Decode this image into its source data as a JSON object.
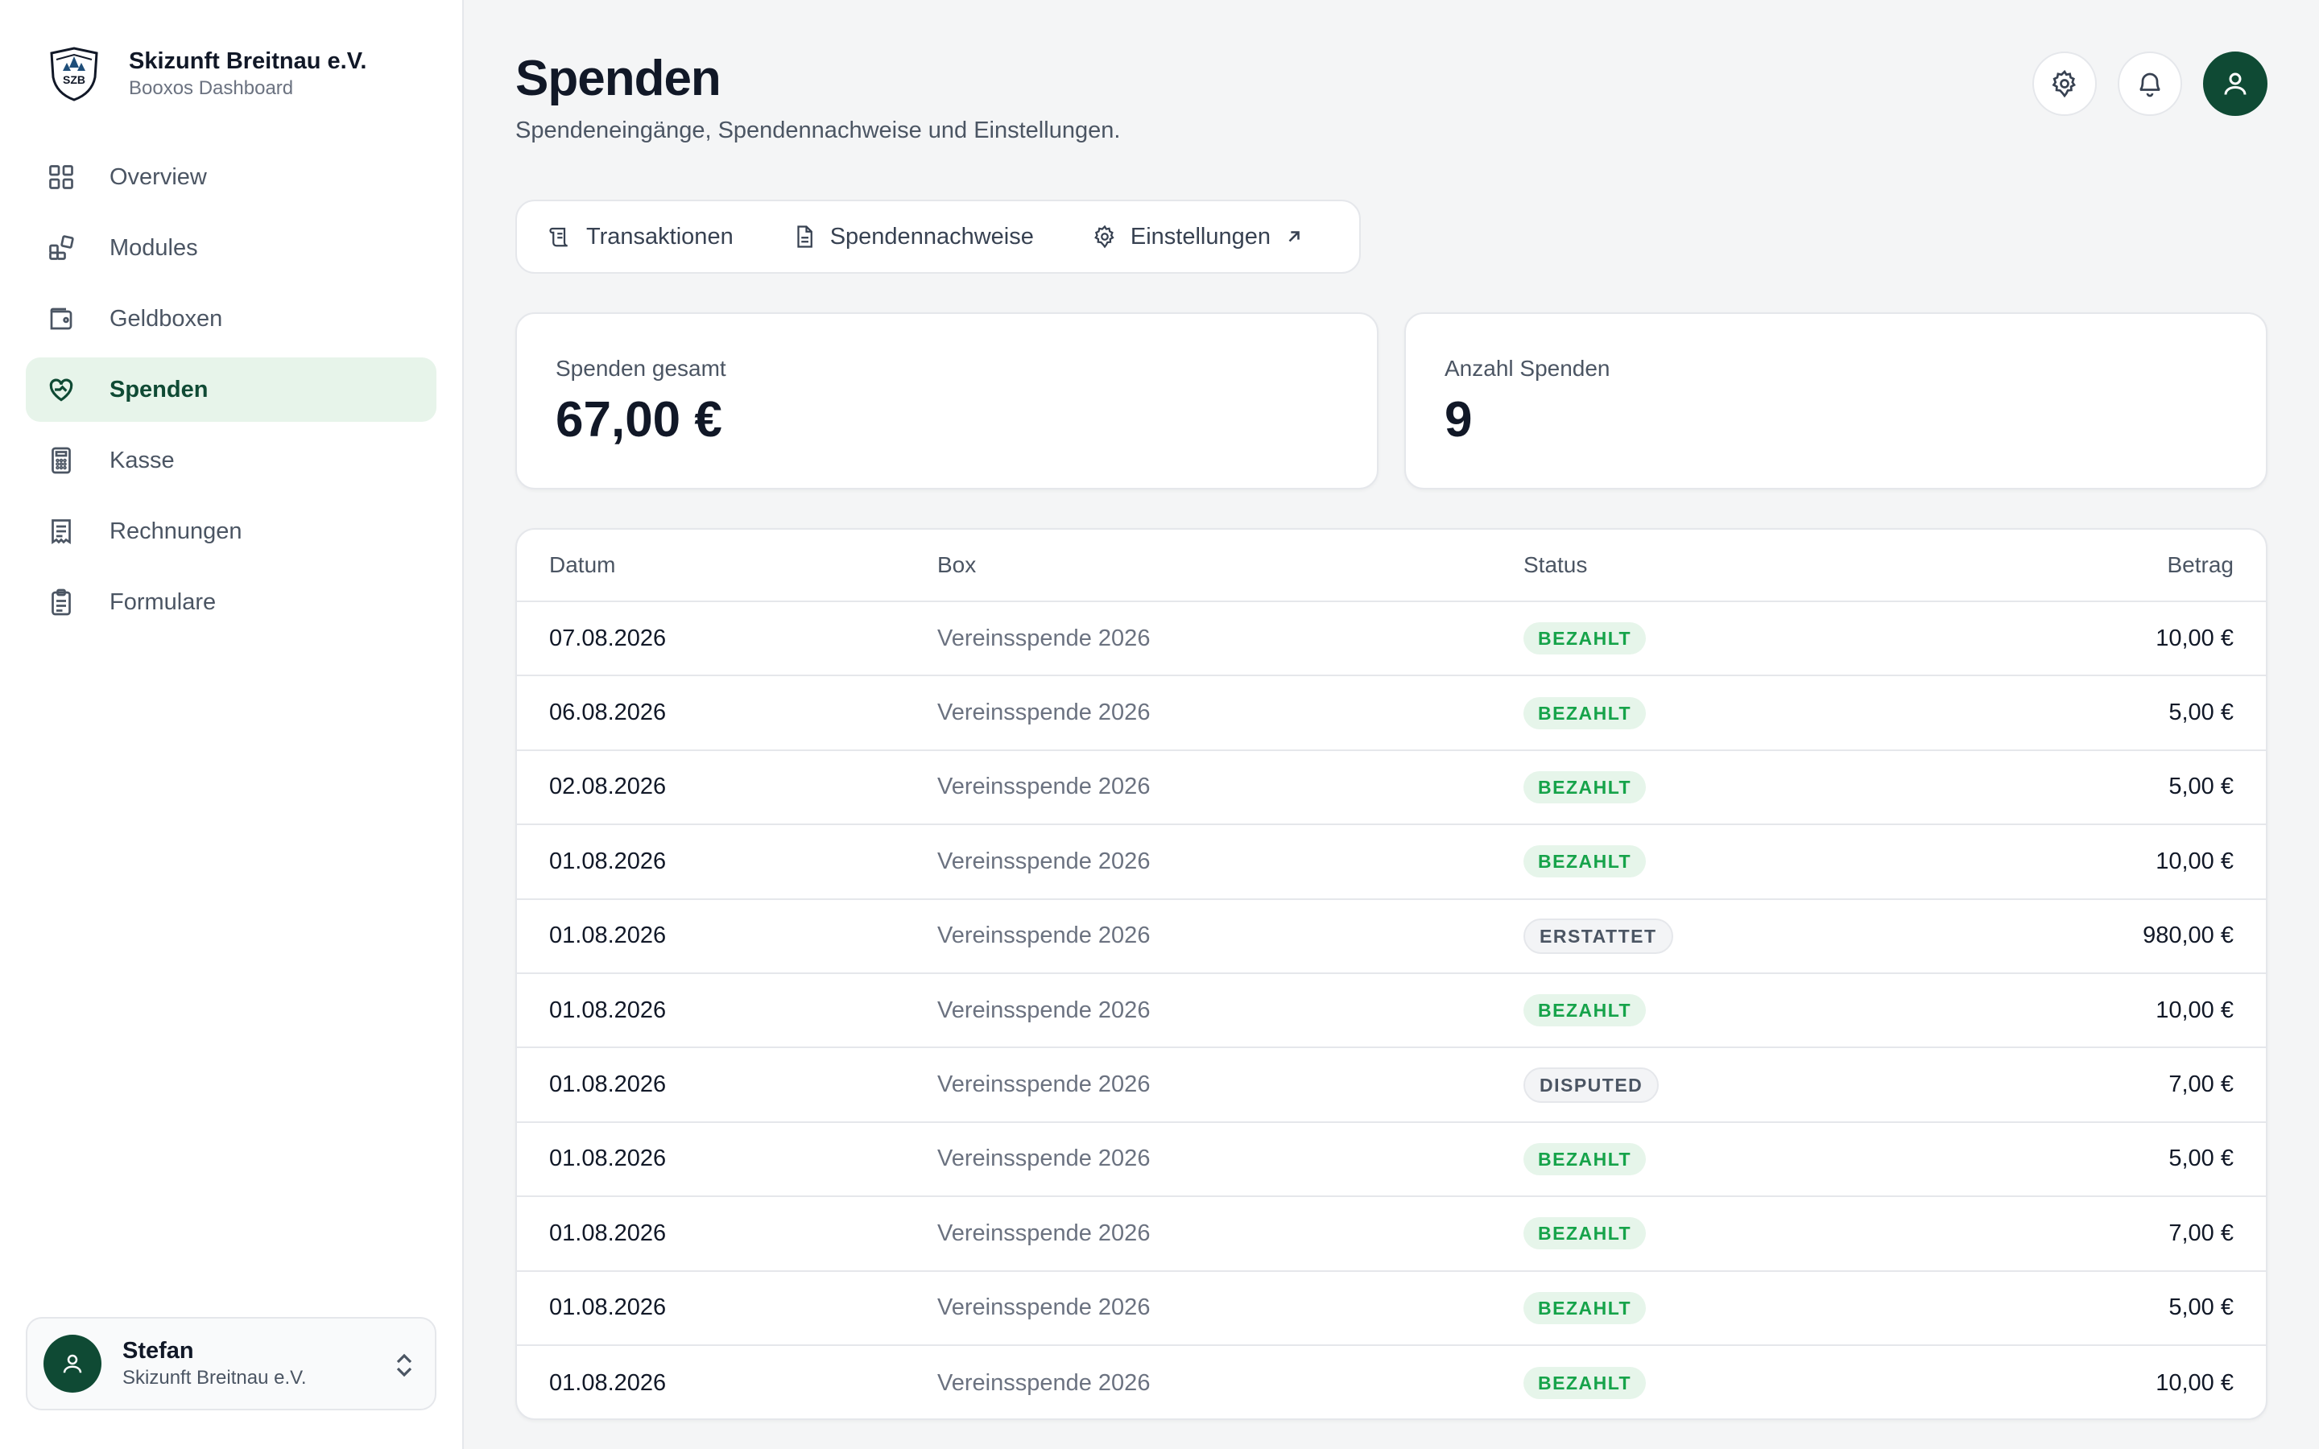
{
  "brand": {
    "name": "Skizunft Breitnau e.V.",
    "subtitle": "Booxos Dashboard",
    "logo_text": "SZB"
  },
  "nav": [
    {
      "label": "Overview",
      "icon": "grid-icon"
    },
    {
      "label": "Modules",
      "icon": "modules-icon"
    },
    {
      "label": "Geldboxen",
      "icon": "wallet-icon"
    },
    {
      "label": "Spenden",
      "icon": "heart-hand-icon",
      "active": true
    },
    {
      "label": "Kasse",
      "icon": "calculator-icon"
    },
    {
      "label": "Rechnungen",
      "icon": "receipt-icon"
    },
    {
      "label": "Formulare",
      "icon": "clipboard-icon"
    }
  ],
  "user": {
    "name": "Stefan",
    "org": "Skizunft Breitnau e.V."
  },
  "page": {
    "title": "Spenden",
    "subtitle": "Spendeneingänge, Spendennachweise und Einstellungen."
  },
  "tabs": [
    {
      "label": "Transaktionen",
      "icon": "scroll-icon"
    },
    {
      "label": "Spendennachweise",
      "icon": "document-icon"
    },
    {
      "label": "Einstellungen",
      "icon": "gear-icon",
      "external": true
    }
  ],
  "stats": [
    {
      "label": "Spenden gesamt",
      "value": "67,00 €"
    },
    {
      "label": "Anzahl Spenden",
      "value": "9"
    }
  ],
  "table": {
    "headers": {
      "date": "Datum",
      "box": "Box",
      "status": "Status",
      "amount": "Betrag"
    },
    "rows": [
      {
        "date": "07.08.2026",
        "box": "Vereinsspende 2026",
        "status": "BEZAHLT",
        "amount": "10,00 €"
      },
      {
        "date": "06.08.2026",
        "box": "Vereinsspende 2026",
        "status": "BEZAHLT",
        "amount": "5,00 €"
      },
      {
        "date": "02.08.2026",
        "box": "Vereinsspende 2026",
        "status": "BEZAHLT",
        "amount": "5,00 €"
      },
      {
        "date": "01.08.2026",
        "box": "Vereinsspende 2026",
        "status": "BEZAHLT",
        "amount": "10,00 €"
      },
      {
        "date": "01.08.2026",
        "box": "Vereinsspende 2026",
        "status": "ERSTATTET",
        "amount": "980,00 €"
      },
      {
        "date": "01.08.2026",
        "box": "Vereinsspende 2026",
        "status": "BEZAHLT",
        "amount": "10,00 €"
      },
      {
        "date": "01.08.2026",
        "box": "Vereinsspende 2026",
        "status": "DISPUTED",
        "amount": "7,00 €"
      },
      {
        "date": "01.08.2026",
        "box": "Vereinsspende 2026",
        "status": "BEZAHLT",
        "amount": "5,00 €"
      },
      {
        "date": "01.08.2026",
        "box": "Vereinsspende 2026",
        "status": "BEZAHLT",
        "amount": "7,00 €"
      },
      {
        "date": "01.08.2026",
        "box": "Vereinsspende 2026",
        "status": "BEZAHLT",
        "amount": "5,00 €"
      },
      {
        "date": "01.08.2026",
        "box": "Vereinsspende 2026",
        "status": "BEZAHLT",
        "amount": "10,00 €"
      }
    ]
  },
  "colors": {
    "brand_green": "#0f4a34",
    "active_bg": "#e7f4ea",
    "paid_green": "#16a34a",
    "background": "#f4f5f6"
  }
}
